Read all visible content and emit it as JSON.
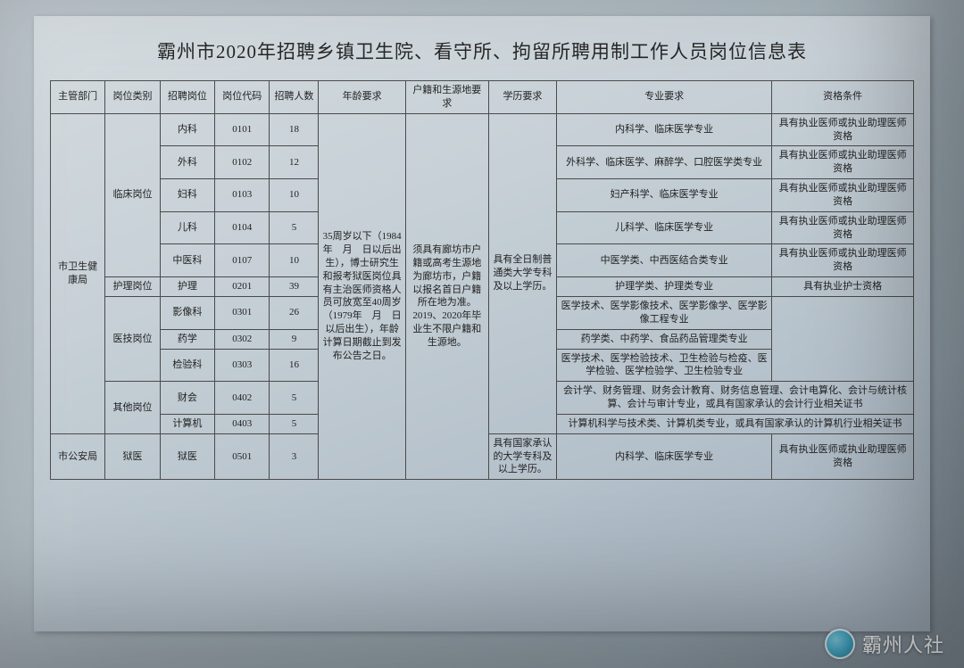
{
  "title": "霸州市2020年招聘乡镇卫生院、看守所、拘留所聘用制工作人员岗位信息表",
  "headers": {
    "c1": "主管部门",
    "c2": "岗位类别",
    "c3": "招聘岗位",
    "c4": "岗位代码",
    "c5": "招聘人数",
    "c6": "年龄要求",
    "c7": "户籍和生源地要求",
    "c8": "学历要求",
    "c9": "专业要求",
    "c10": "资格条件"
  },
  "dept1": "市卫生健康局",
  "dept2": "市公安局",
  "cat_clinical": "临床岗位",
  "cat_nursing": "护理岗位",
  "cat_tech": "医技岗位",
  "cat_other": "其他岗位",
  "cat_prison": "狱医",
  "age_req": "35周岁以下（1984年　月　日以后出生），博士研究生和报考狱医岗位具有主治医师资格人员可放宽至40周岁（1979年　月　日以后出生），年龄计算日期截止到发布公告之日。",
  "huji_req": "须具有廊坊市户籍或高考生源地为廊坊市，户籍以报名首日户籍所在地为准。2019、2020年毕业生不限户籍和生源地。",
  "edu_req1": "具有全日制普通类大学专科及以上学历。",
  "edu_req2": "具有国家承认的大学专科及以上学历。",
  "rows": {
    "r1": {
      "post": "内科",
      "code": "0101",
      "num": "18",
      "major": "内科学、临床医学专业",
      "qual": "具有执业医师或执业助理医师资格"
    },
    "r2": {
      "post": "外科",
      "code": "0102",
      "num": "12",
      "major": "外科学、临床医学、麻醉学、口腔医学类专业",
      "qual": "具有执业医师或执业助理医师资格"
    },
    "r3": {
      "post": "妇科",
      "code": "0103",
      "num": "10",
      "major": "妇产科学、临床医学专业",
      "qual": "具有执业医师或执业助理医师资格"
    },
    "r4": {
      "post": "儿科",
      "code": "0104",
      "num": "5",
      "major": "儿科学、临床医学专业",
      "qual": "具有执业医师或执业助理医师资格"
    },
    "r5": {
      "post": "中医科",
      "code": "0107",
      "num": "10",
      "major": "中医学类、中西医结合类专业",
      "qual": "具有执业医师或执业助理医师资格"
    },
    "r6": {
      "post": "护理",
      "code": "0201",
      "num": "39",
      "major": "护理学类、护理类专业",
      "qual": "具有执业护士资格"
    },
    "r7": {
      "post": "影像科",
      "code": "0301",
      "num": "26",
      "major": "医学技术、医学影像技术、医学影像学、医学影像工程专业"
    },
    "r8": {
      "post": "药学",
      "code": "0302",
      "num": "9",
      "major": "药学类、中药学、食品药品管理类专业"
    },
    "r9": {
      "post": "检验科",
      "code": "0303",
      "num": "16",
      "major": "医学技术、医学检验技术、卫生检验与检疫、医学检验、医学检验学、卫生检验专业"
    },
    "r10": {
      "post": "财会",
      "code": "0402",
      "num": "5"
    },
    "r11": {
      "post": "计算机",
      "code": "0403",
      "num": "5"
    },
    "r12": {
      "post": "狱医",
      "code": "0501",
      "num": "3",
      "major": "内科学、临床医学专业",
      "qual": "具有执业医师或执业助理医师资格"
    }
  },
  "merged_major_10": "会计学、财务管理、财务会计教育、财务信息管理、会计电算化、会计与统计核算、会计与审计专业，或具有国家承认的会计行业相关证书",
  "merged_major_11": "计算机科学与技术类、计算机类专业，或具有国家承认的计算机行业相关证书",
  "watermark": "霸州人社",
  "colwidths": {
    "c1": "58",
    "c2": "58",
    "c3": "58",
    "c4": "58",
    "c5": "52",
    "c6": "92",
    "c7": "88",
    "c8": "72",
    "c9": "228",
    "c10": "150"
  },
  "colors": {
    "border": "#4a4a4a",
    "text": "#222222",
    "paper_light": "#d4dbdf",
    "paper_dark": "#9ca8b4",
    "bg_light": "#b8c2c8",
    "bg_dark": "#7a8690"
  }
}
